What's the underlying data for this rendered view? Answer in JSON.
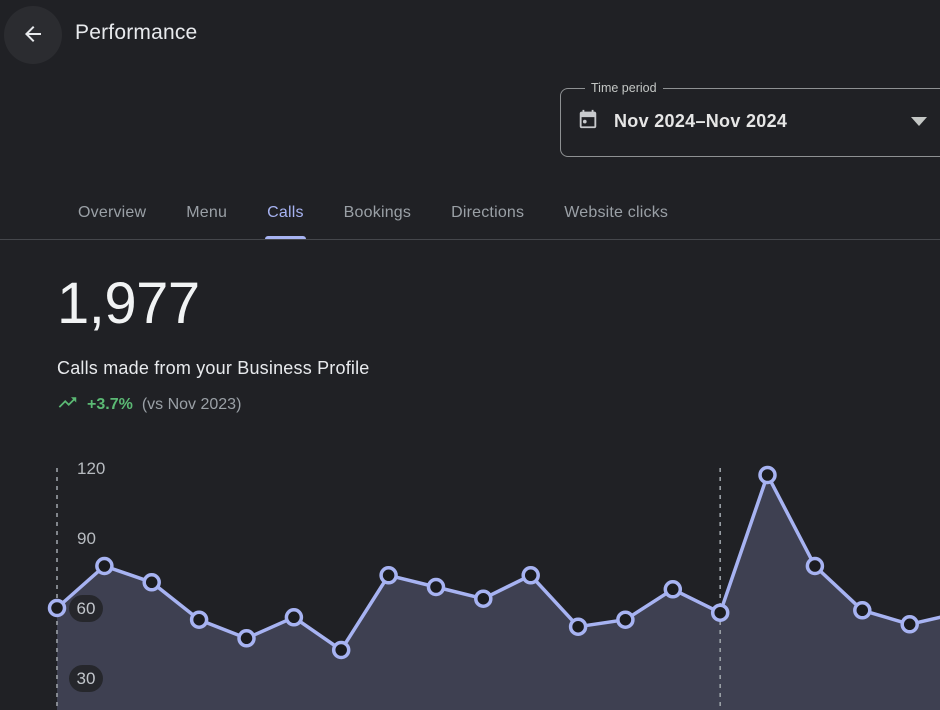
{
  "app": {
    "background": "#202125",
    "accent": "#a7b3f2",
    "divider": "#45474c"
  },
  "header": {
    "title": "Performance",
    "back_icon": "arrow-left"
  },
  "time_period": {
    "label": "Time period",
    "value": "Nov 2024–Nov 2024",
    "calendar_icon": "calendar-icon",
    "dropdown_icon": "caret-down-icon"
  },
  "tabs": [
    {
      "label": "Overview",
      "active": false
    },
    {
      "label": "Menu",
      "active": false
    },
    {
      "label": "Calls",
      "active": true
    },
    {
      "label": "Bookings",
      "active": false
    },
    {
      "label": "Directions",
      "active": false
    },
    {
      "label": "Website clicks",
      "active": false
    }
  ],
  "metric": {
    "value": "1,977",
    "description": "Calls made from your Business Profile",
    "trend_icon": "trending-up-icon",
    "trend_value": "+3.7%",
    "trend_comparison": "(vs Nov 2023)",
    "trend_color": "#5bb974"
  },
  "chart_data": {
    "type": "area",
    "title": "Calls made from your Business Profile",
    "series": [
      {
        "name": "Calls",
        "values": [
          60,
          78,
          71,
          55,
          47,
          56,
          42,
          74,
          69,
          64,
          74,
          52,
          55,
          68,
          58,
          117,
          78,
          59,
          53
        ]
      }
    ],
    "partial_edge_value": 56,
    "dashed_marker_indices": [
      0,
      14
    ],
    "y_axis": {
      "ticks": [
        {
          "value": 120,
          "label": "120",
          "pill": false
        },
        {
          "value": 90,
          "label": "90",
          "pill": false
        },
        {
          "value": 60,
          "label": "60",
          "pill": true
        },
        {
          "value": 30,
          "label": "30",
          "pill": true
        }
      ]
    },
    "x_tick_labels_visible": false,
    "grid": "off",
    "legend": "none",
    "colors": {
      "line": "#a7b3f2",
      "fill": "rgba(167,179,242,0.22)",
      "marker_fill": "#1b1c20",
      "dashed_line": "#9aa0a6",
      "tick_label": "#b7bbc0",
      "tick_pill_bg": "#26272c"
    }
  }
}
